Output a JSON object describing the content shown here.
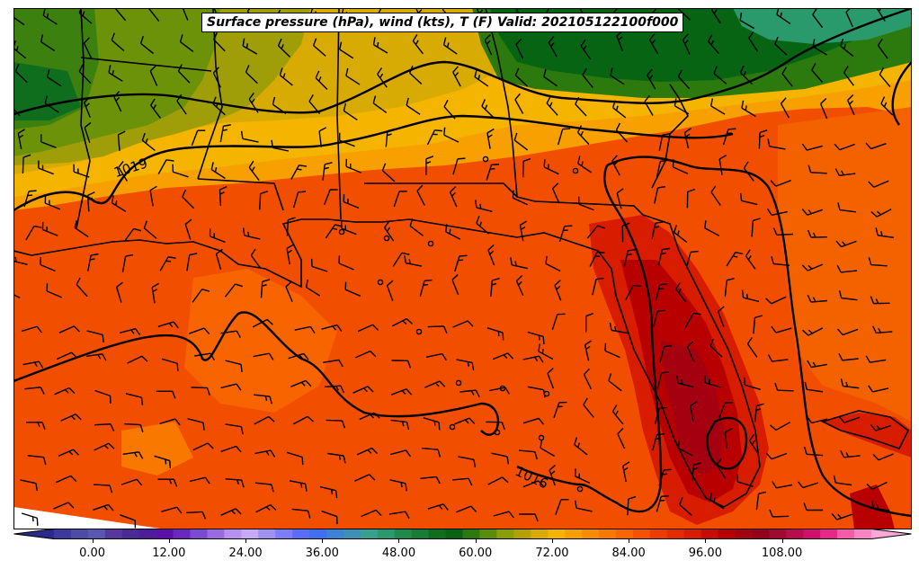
{
  "title": "Surface pressure (hPa), wind (kts), T (F) Valid: 202105122100f000",
  "isobar_labels": [
    "1019",
    "1016"
  ],
  "colorbar": {
    "ticks": [
      "0.00",
      "12.00",
      "24.00",
      "36.00",
      "48.00",
      "60.00",
      "72.00",
      "84.00",
      "96.00",
      "108.00"
    ],
    "min": -6,
    "max": 122,
    "colors": [
      "#2a2a8c",
      "#3c3a9c",
      "#4e4aa8",
      "#5a56b4",
      "#55389e",
      "#4a2a94",
      "#4c1e9a",
      "#5c10a8",
      "#6a28c0",
      "#7c4ad0",
      "#9a6ae0",
      "#b890f0",
      "#c8a8f8",
      "#a090f0",
      "#7c7ef8",
      "#5a6cf8",
      "#4070f0",
      "#3c82d8",
      "#3c90b8",
      "#3aa08c",
      "#2a9a6c",
      "#1f8a4a",
      "#197c36",
      "#0e6e1e",
      "#066412",
      "#2c7a0e",
      "#5a8e0a",
      "#8a9e08",
      "#b4a006",
      "#d8aa04",
      "#f4b400",
      "#f6a000",
      "#f88c00",
      "#f87800",
      "#f86400",
      "#f65000",
      "#ee3c00",
      "#e42c00",
      "#d81c00",
      "#c80c00",
      "#b80000",
      "#a40010",
      "#94001c",
      "#a00a30",
      "#b80c4c",
      "#d0106a",
      "#e82888",
      "#f45ca8",
      "#f884c4",
      "#fca8d8"
    ]
  },
  "station_calms": 14
}
